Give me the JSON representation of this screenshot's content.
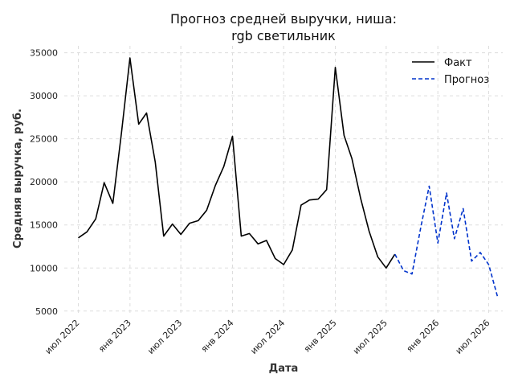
{
  "chart_data": {
    "type": "line",
    "title_lines": [
      "Прогноз средней выручки, ниша:",
      "rgb светильник"
    ],
    "xlabel": "Дата",
    "ylabel": "Средняя выручка, руб.",
    "ylim": [
      4700,
      35800
    ],
    "yticks": [
      5000,
      10000,
      15000,
      20000,
      25000,
      30000,
      35000
    ],
    "xlim": [
      "2022-05-12",
      "2026-08-20"
    ],
    "xticks": [
      {
        "date": "2022-07-01",
        "label": "июл 2022"
      },
      {
        "date": "2023-01-01",
        "label": "янв 2023"
      },
      {
        "date": "2023-07-01",
        "label": "июл 2023"
      },
      {
        "date": "2024-01-01",
        "label": "янв 2024"
      },
      {
        "date": "2024-07-01",
        "label": "июл 2024"
      },
      {
        "date": "2025-01-01",
        "label": "янв 2025"
      },
      {
        "date": "2025-07-01",
        "label": "июл 2025"
      },
      {
        "date": "2026-01-01",
        "label": "янв 2026"
      },
      {
        "date": "2026-07-01",
        "label": "июл 2026"
      }
    ],
    "grid": true,
    "legend_position": "top-right",
    "series": [
      {
        "name": "Факт",
        "color": "#000000",
        "style": "solid",
        "x": [
          "2022-07-01",
          "2022-08-01",
          "2022-09-01",
          "2022-10-01",
          "2022-11-01",
          "2022-12-01",
          "2023-01-01",
          "2023-02-01",
          "2023-03-01",
          "2023-04-01",
          "2023-05-01",
          "2023-06-01",
          "2023-07-01",
          "2023-08-01",
          "2023-09-01",
          "2023-10-01",
          "2023-11-01",
          "2023-12-01",
          "2024-01-01",
          "2024-02-01",
          "2024-03-01",
          "2024-04-01",
          "2024-05-01",
          "2024-06-01",
          "2024-07-01",
          "2024-08-01",
          "2024-09-01",
          "2024-10-01",
          "2024-11-01",
          "2024-12-01",
          "2025-01-01",
          "2025-02-01",
          "2025-03-01",
          "2025-04-01",
          "2025-05-01",
          "2025-06-01",
          "2025-07-01",
          "2025-08-01"
        ],
        "values": [
          13500,
          14200,
          15700,
          19900,
          17500,
          25500,
          34400,
          26700,
          28000,
          22300,
          13700,
          15100,
          13900,
          15200,
          15500,
          16700,
          19600,
          21800,
          25300,
          13700,
          14000,
          12800,
          13200,
          11100,
          10400,
          12100,
          17300,
          17900,
          18000,
          19100,
          33300,
          25400,
          22700,
          18100,
          14300,
          11300,
          10000,
          11600
        ]
      },
      {
        "name": "Прогноз",
        "color": "#0033cc",
        "style": "dashed",
        "x": [
          "2025-08-01",
          "2025-09-01",
          "2025-10-01",
          "2025-11-01",
          "2025-12-01",
          "2026-01-01",
          "2026-02-01",
          "2026-03-01",
          "2026-04-01",
          "2026-05-01",
          "2026-06-01",
          "2026-07-01",
          "2026-08-01"
        ],
        "values": [
          11600,
          9700,
          9300,
          14700,
          19500,
          12900,
          18700,
          13400,
          16900,
          10800,
          11800,
          10400,
          6700
        ]
      }
    ]
  }
}
